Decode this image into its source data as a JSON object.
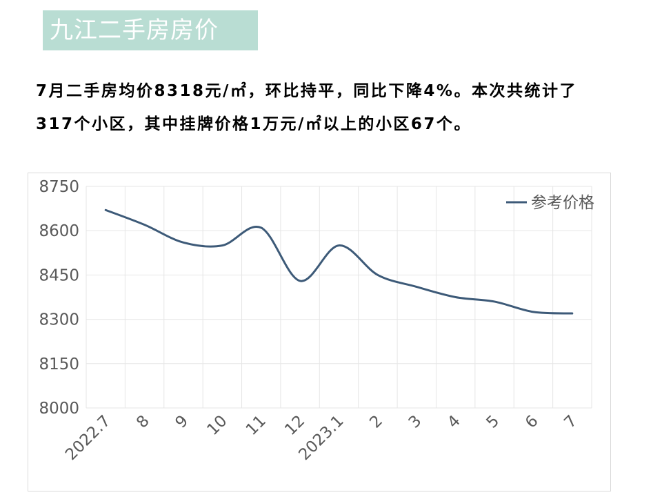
{
  "header": {
    "title": "九江二手房房价"
  },
  "summary": {
    "text": "7月二手房均价8318元/㎡，环比持平，同比下降4%。本次共统计了317个小区，其中挂牌价格1万元/㎡以上的小区67个。"
  },
  "colors": {
    "title_bg": "#b9ddd3",
    "line": "#3d5a78",
    "grid": "#e6e6e6"
  },
  "chart_data": {
    "type": "line",
    "categories": [
      "2022.7",
      "8",
      "9",
      "10",
      "11",
      "12",
      "2023.1",
      "2",
      "3",
      "4",
      "5",
      "6",
      "7"
    ],
    "series": [
      {
        "name": "参考价格",
        "values": [
          8670,
          8620,
          8560,
          8550,
          8610,
          8430,
          8550,
          8450,
          8410,
          8375,
          8360,
          8325,
          8320
        ]
      }
    ],
    "yticks": [
      "8000",
      "8150",
      "8300",
      "8450",
      "8600",
      "8750"
    ],
    "ylim": [
      8000,
      8750
    ],
    "legend": "top-right",
    "grid": true
  }
}
